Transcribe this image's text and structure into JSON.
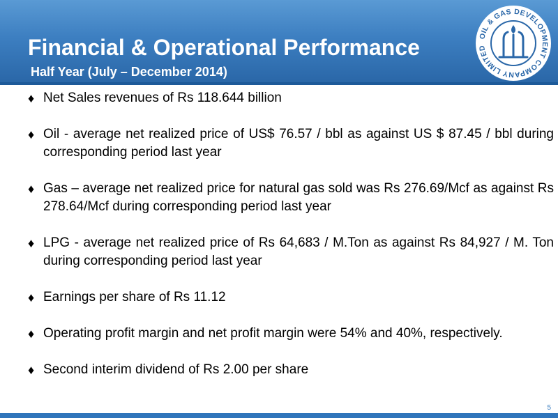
{
  "slide": {
    "title": "Financial & Operational Performance",
    "subtitle": "Half Year (July – December 2014)",
    "page_number": "5"
  },
  "logo": {
    "text_arc": "OIL & GAS DEVELOPMENT COMPANY LIMITED",
    "ring_color": "#ffffff",
    "emblem_color": "#2a67a8"
  },
  "bullets": [
    {
      "text": "Net Sales revenues of Rs 118.644 billion"
    },
    {
      "text": "Oil - average net realized price of US$  76.57 / bbl as against US $ 87.45 / bbl during corresponding period last year"
    },
    {
      "text": "Gas – average net realized price for natural gas sold was Rs 276.69/Mcf as against Rs 278.64/Mcf during corresponding period last year"
    },
    {
      "text": "LPG - average net realized price of Rs 64,683 / M.Ton as against Rs 84,927 / M. Ton during corresponding period last year"
    },
    {
      "text": "Earnings per share of Rs 11.12"
    },
    {
      "text": "Operating profit margin and net profit margin were 54% and 40%, respectively."
    },
    {
      "text": "Second interim dividend of Rs 2.00 per share"
    }
  ],
  "bullet_symbol": "♦"
}
